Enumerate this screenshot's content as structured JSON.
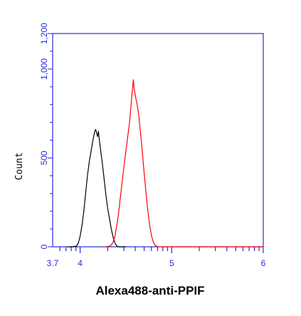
{
  "chart_data": {
    "type": "line",
    "title": "",
    "xlabel": "Alexa488-anti-PPIF",
    "ylabel": "Count",
    "x_scale": "log",
    "xlim": [
      3.7,
      6
    ],
    "ylim": [
      0,
      1200
    ],
    "grid": false,
    "legend": "none",
    "x_tick_labels": [
      {
        "value": 3.7,
        "text": "3.7"
      },
      {
        "value": 4,
        "text": "4"
      },
      {
        "value": 5,
        "text": "5"
      },
      {
        "value": 6,
        "text": "6"
      }
    ],
    "y_tick_labels": [
      {
        "value": 0,
        "text": "0"
      },
      {
        "value": 500,
        "text": "500"
      },
      {
        "value": 1000,
        "text": "1,000"
      },
      {
        "value": 1200,
        "text": "1,200"
      }
    ],
    "series": [
      {
        "color": "#000000",
        "points": [
          [
            3.86,
            0
          ],
          [
            3.92,
            0
          ],
          [
            3.96,
            5
          ],
          [
            3.98,
            20
          ],
          [
            4.0,
            60
          ],
          [
            4.02,
            120
          ],
          [
            4.04,
            200
          ],
          [
            4.06,
            300
          ],
          [
            4.08,
            400
          ],
          [
            4.1,
            480
          ],
          [
            4.12,
            540
          ],
          [
            4.14,
            600
          ],
          [
            4.16,
            650
          ],
          [
            4.17,
            660
          ],
          [
            4.18,
            640
          ],
          [
            4.19,
            620
          ],
          [
            4.2,
            650
          ],
          [
            4.21,
            600
          ],
          [
            4.22,
            560
          ],
          [
            4.24,
            480
          ],
          [
            4.26,
            390
          ],
          [
            4.28,
            300
          ],
          [
            4.3,
            220
          ],
          [
            4.32,
            160
          ],
          [
            4.34,
            100
          ],
          [
            4.36,
            55
          ],
          [
            4.38,
            22
          ],
          [
            4.4,
            5
          ],
          [
            4.42,
            0
          ],
          [
            4.5,
            0
          ]
        ]
      },
      {
        "color": "#ff0000",
        "points": [
          [
            4.28,
            0
          ],
          [
            4.33,
            5
          ],
          [
            4.36,
            25
          ],
          [
            4.38,
            60
          ],
          [
            4.4,
            120
          ],
          [
            4.42,
            190
          ],
          [
            4.44,
            280
          ],
          [
            4.46,
            370
          ],
          [
            4.48,
            460
          ],
          [
            4.5,
            540
          ],
          [
            4.52,
            620
          ],
          [
            4.54,
            700
          ],
          [
            4.55,
            760
          ],
          [
            4.56,
            820
          ],
          [
            4.57,
            880
          ],
          [
            4.58,
            940
          ],
          [
            4.59,
            890
          ],
          [
            4.6,
            860
          ],
          [
            4.61,
            830
          ],
          [
            4.62,
            810
          ],
          [
            4.64,
            740
          ],
          [
            4.66,
            640
          ],
          [
            4.68,
            530
          ],
          [
            4.7,
            410
          ],
          [
            4.72,
            300
          ],
          [
            4.74,
            200
          ],
          [
            4.76,
            120
          ],
          [
            4.78,
            60
          ],
          [
            4.8,
            25
          ],
          [
            4.82,
            8
          ],
          [
            4.85,
            0
          ],
          [
            5.0,
            0
          ],
          [
            5.5,
            0
          ],
          [
            6.0,
            0
          ]
        ]
      }
    ]
  }
}
